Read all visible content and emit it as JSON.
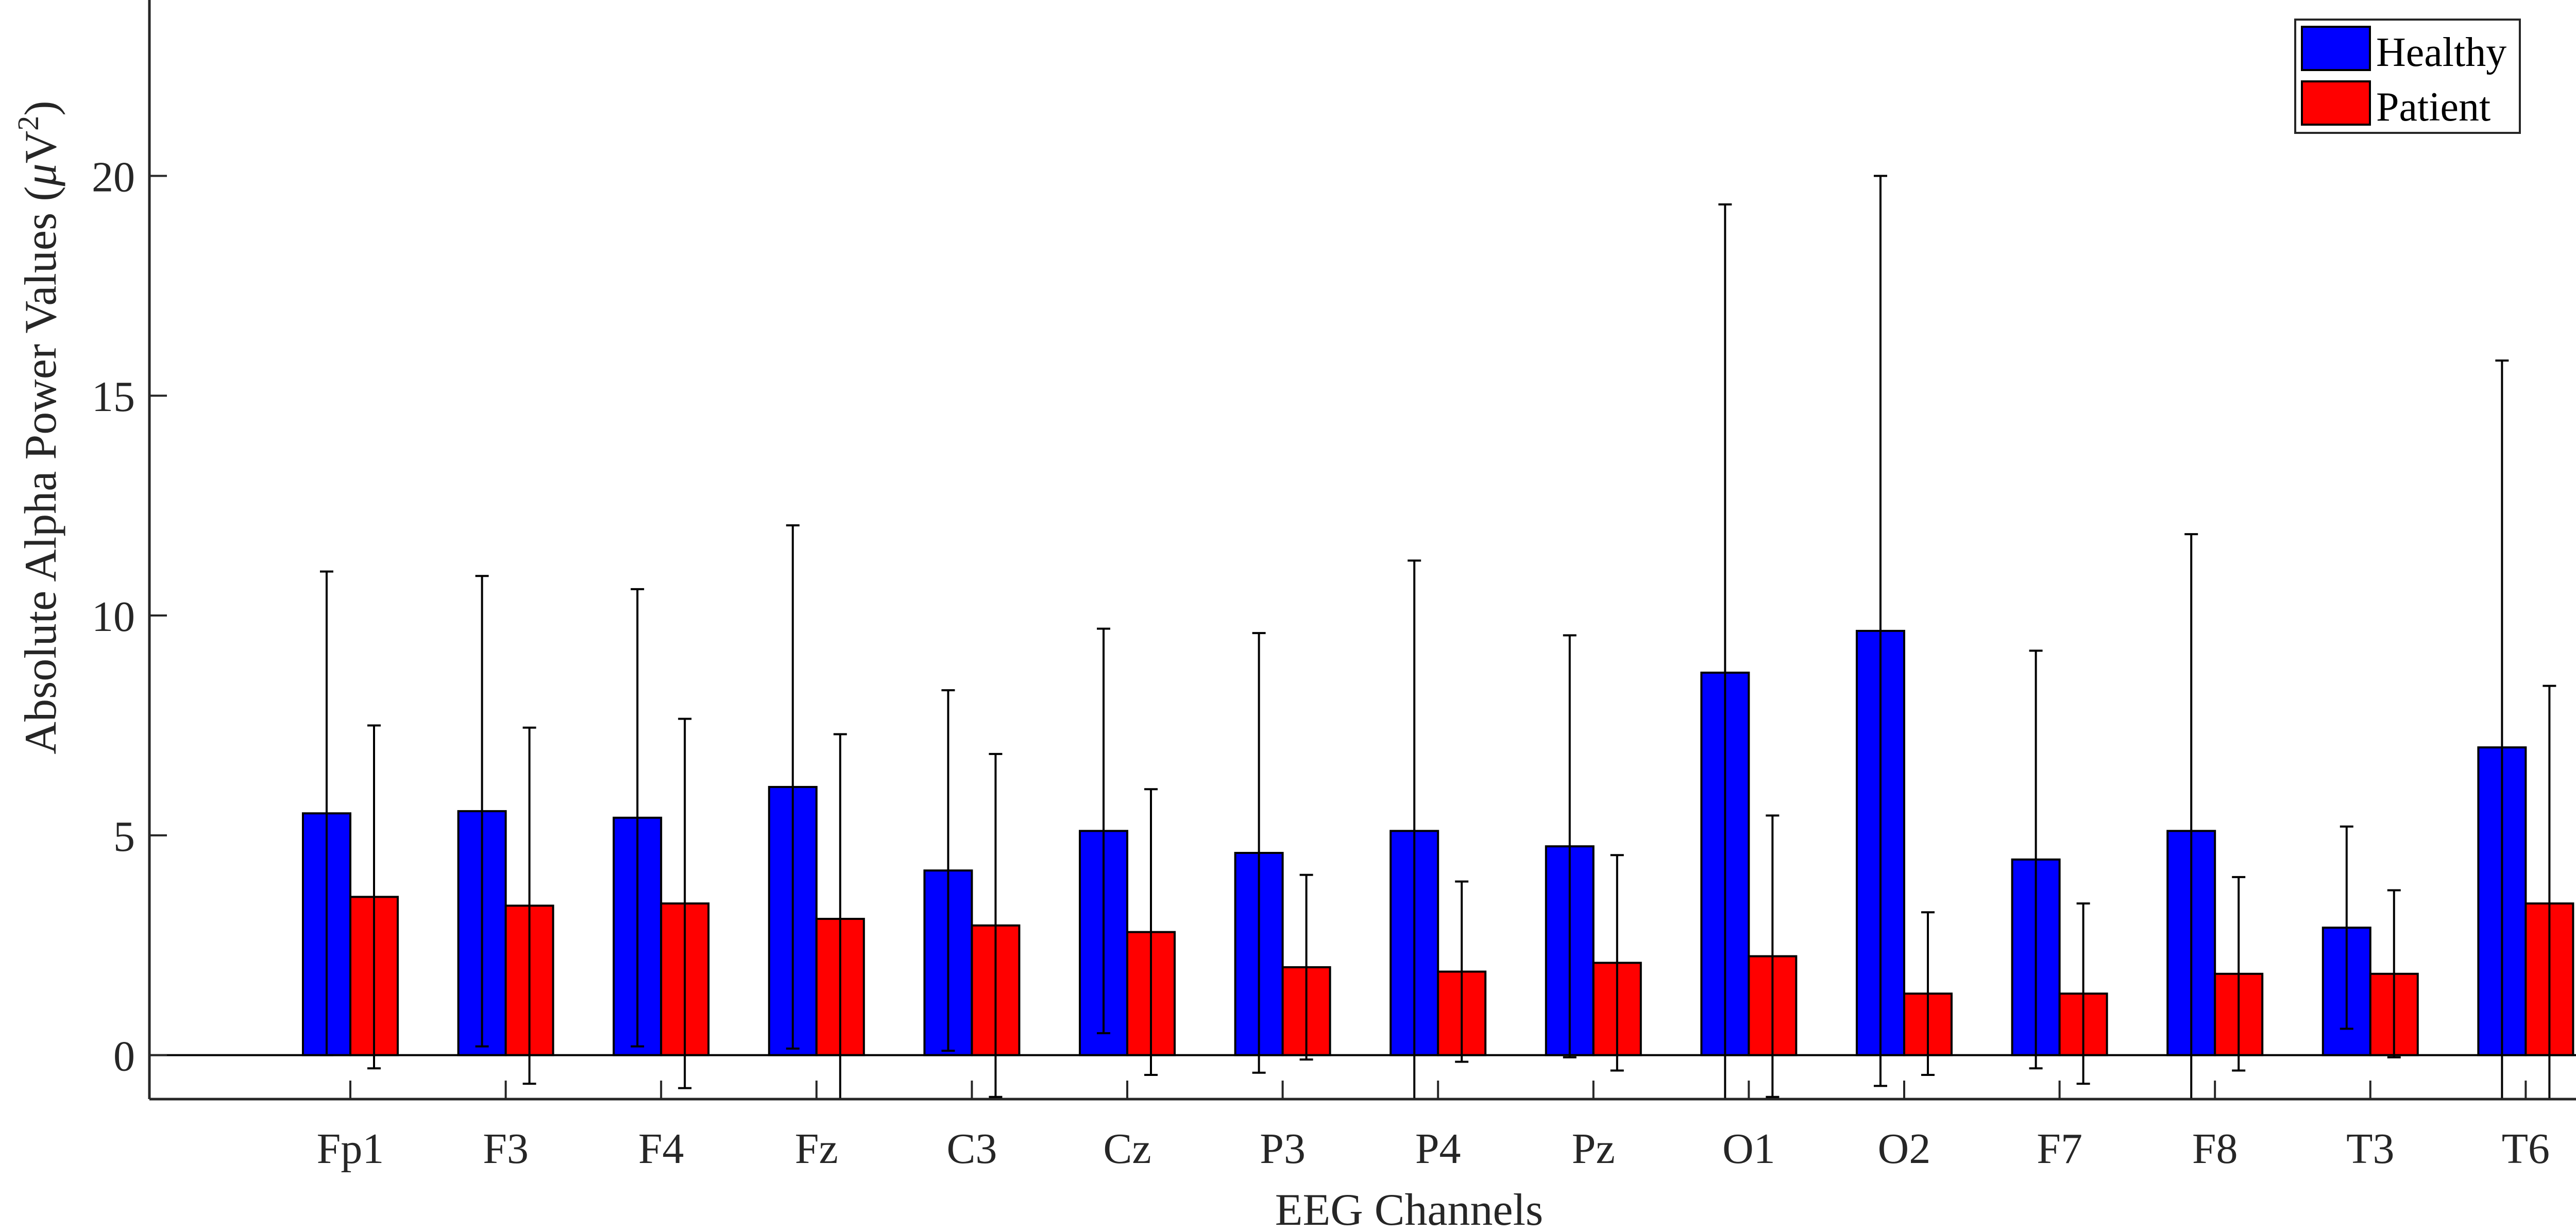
{
  "chart_data": {
    "type": "bar",
    "title": "",
    "xlabel": "EEG Channels",
    "ylabel": "Absolute Alpha Power Values (μV²)",
    "ylabel_parts": {
      "main": "Absolute Alpha Power Values (",
      "mu": "μ",
      "unit": "V",
      "sup": "2",
      "close": ")"
    },
    "ylim": [
      -1,
      24
    ],
    "yticks": [
      0,
      5,
      10,
      15,
      20
    ],
    "ytick_labels": [
      "0",
      "5",
      "10",
      "15",
      "20"
    ],
    "categories": [
      "Fp1",
      "F3",
      "F4",
      "Fz",
      "C3",
      "Cz",
      "P3",
      "P4",
      "Pz",
      "O1",
      "O2",
      "F7",
      "F8",
      "T3",
      "T6"
    ],
    "series": [
      {
        "name": "Healthy",
        "color": "#0000ff",
        "values": [
          5.5,
          5.55,
          5.4,
          6.1,
          4.2,
          5.1,
          4.6,
          5.1,
          4.75,
          8.7,
          9.65,
          4.45,
          5.1,
          2.9,
          7.0
        ],
        "error": [
          5.5,
          5.35,
          5.2,
          5.95,
          4.1,
          4.6,
          5.0,
          6.15,
          4.8,
          10.65,
          10.35,
          4.75,
          6.75,
          2.3,
          8.8
        ]
      },
      {
        "name": "Patient",
        "color": "#ff0000",
        "values": [
          3.6,
          3.4,
          3.45,
          3.1,
          2.95,
          2.8,
          2.0,
          1.9,
          2.1,
          2.25,
          1.4,
          1.4,
          1.85,
          1.85,
          3.45
        ],
        "error": [
          3.9,
          4.05,
          4.2,
          4.2,
          3.9,
          3.25,
          2.1,
          2.05,
          2.45,
          3.2,
          1.85,
          2.05,
          2.2,
          1.9,
          4.95
        ]
      }
    ],
    "legend": {
      "position": "top-right",
      "entries": [
        "Healthy",
        "Patient"
      ]
    },
    "grid": false
  }
}
